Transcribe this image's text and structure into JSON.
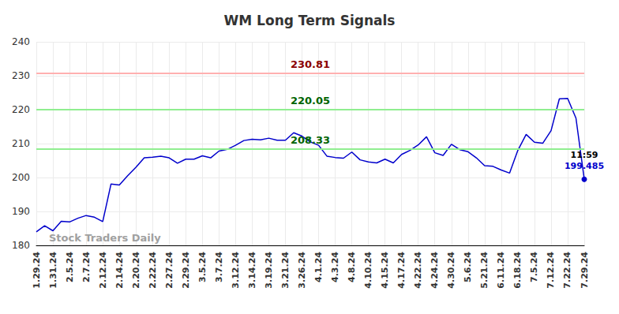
{
  "chart_data": {
    "type": "line",
    "title": "WM Long Term Signals",
    "watermark": "Stock Traders Daily",
    "categories": [
      "1.29.24",
      null,
      "1.31.24",
      null,
      "2.5.24",
      null,
      "2.7.24",
      null,
      "2.12.24",
      null,
      "2.14.24",
      null,
      "2.20.24",
      null,
      "2.22.24",
      null,
      "2.27.24",
      null,
      "2.29.24",
      null,
      "3.5.24",
      null,
      "3.7.24",
      null,
      "3.12.24",
      null,
      "3.14.24",
      null,
      "3.19.24",
      null,
      "3.21.24",
      null,
      "3.26.24",
      null,
      "4.1.24",
      null,
      "4.3.24",
      null,
      "4.8.24",
      null,
      "4.10.24",
      null,
      "4.15.24",
      null,
      "4.17.24",
      null,
      "4.22.24",
      null,
      "4.24.24",
      null,
      "4.30.24",
      null,
      "5.6.24",
      null,
      "5.21.24",
      null,
      "6.11.24",
      null,
      "6.18.24",
      null,
      "7.5.24",
      null,
      "7.12.24",
      null,
      "7.22.24",
      null,
      "7.29.24"
    ],
    "values": [
      184,
      185.8,
      184.3,
      187.1,
      186.9,
      188,
      188.8,
      188.3,
      187,
      198.1,
      197.8,
      200.5,
      203,
      205.8,
      206,
      206.3,
      205.8,
      204.2,
      205.4,
      205.4,
      206.4,
      205.8,
      207.8,
      208.3,
      209.5,
      210.9,
      211.3,
      211.1,
      211.6,
      211,
      211,
      213.2,
      212.2,
      210.5,
      209.5,
      206.3,
      205.9,
      205.7,
      207.5,
      205.2,
      204.6,
      204.3,
      205.4,
      204.3,
      206.8,
      208,
      209.6,
      212,
      207.3,
      206.5,
      209.8,
      208.2,
      207.6,
      205.8,
      203.5,
      203.3,
      202.2,
      201.3,
      208,
      212.7,
      210.4,
      210.1,
      213.8,
      223.2,
      223.3,
      217.5,
      199.485
    ],
    "color": "#0000cc",
    "last_point_time": "11:59",
    "reference_lines": [
      {
        "value": 230.81,
        "color": "#ffb0b0",
        "label_color": "#8b0000"
      },
      {
        "value": 220.05,
        "color": "#90ee90",
        "label_color": "#006400"
      },
      {
        "value": 208.33,
        "color": "#90ee90",
        "label_color": "#006400"
      }
    ],
    "ylim": [
      180,
      240
    ],
    "yticks": [
      180,
      190,
      200,
      210,
      220,
      230,
      240
    ],
    "grid": true
  }
}
